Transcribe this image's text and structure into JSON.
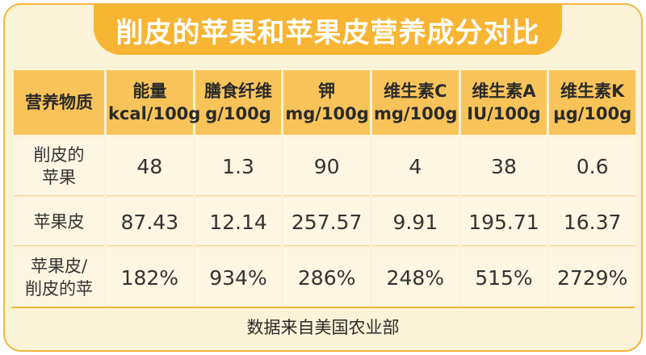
{
  "title": "削皮的苹果和苹果皮营养成分对比",
  "header": {
    "row_label": "营养物质",
    "columns": [
      {
        "name": "能量",
        "unit": "kcal/100g"
      },
      {
        "name": "膳食纤维",
        "unit": "g/100g"
      },
      {
        "name": "钾",
        "unit": "mg/100g"
      },
      {
        "name": "维生素C",
        "unit": "mg/100g"
      },
      {
        "name": "维生素A",
        "unit": "IU/100g"
      },
      {
        "name": "维生素K",
        "unit": "μg/100g"
      }
    ]
  },
  "rows": [
    {
      "label_line1": "削皮的",
      "label_line2": "苹果",
      "values": [
        "48",
        "1.3",
        "90",
        "4",
        "38",
        "0.6"
      ]
    },
    {
      "label_line1": "苹果皮",
      "label_line2": "",
      "values": [
        "87.43",
        "12.14",
        "257.57",
        "9.91",
        "195.71",
        "16.37"
      ]
    },
    {
      "label_line1": "苹果皮/",
      "label_line2": "削皮的苹",
      "values": [
        "182%",
        "934%",
        "286%",
        "248%",
        "515%",
        "2729%"
      ]
    }
  ],
  "footer": "数据来自美国农业部",
  "colors": {
    "accent": "#f7b533",
    "header_cell": "#f8c45a",
    "background": "#fbf3d8"
  }
}
